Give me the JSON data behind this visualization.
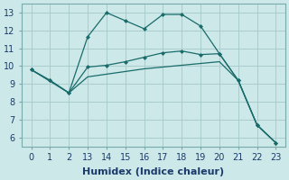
{
  "xlabel": "Humidex (Indice chaleur)",
  "bg_color": "#cce8e8",
  "grid_color": "#aacccc",
  "line_color": "#1a6b6b",
  "x_labels": [
    "0",
    "1",
    "2",
    "13",
    "14",
    "15",
    "16",
    "17",
    "18",
    "19",
    "20",
    "21",
    "22",
    "23"
  ],
  "ylim": [
    5.5,
    13.5
  ],
  "y_ticks": [
    6,
    7,
    8,
    9,
    10,
    11,
    12,
    13
  ],
  "series1_y": [
    9.8,
    9.2,
    8.5,
    11.65,
    13.0,
    12.55,
    12.1,
    12.9,
    12.9,
    12.25,
    10.7,
    9.2,
    6.7,
    5.7
  ],
  "series2_y": [
    9.8,
    9.2,
    8.5,
    9.95,
    10.05,
    10.25,
    10.5,
    10.75,
    10.85,
    10.65,
    10.7,
    9.2,
    6.7,
    5.7
  ],
  "series3_y": [
    9.8,
    9.15,
    8.5,
    9.4,
    9.55,
    9.7,
    9.85,
    9.95,
    10.05,
    10.15,
    10.25,
    9.2,
    6.7,
    5.7
  ],
  "xlabel_fontsize": 8,
  "tick_fontsize": 7,
  "xlabel_color": "#1a3a6b",
  "xlabel_fontweight": "bold"
}
